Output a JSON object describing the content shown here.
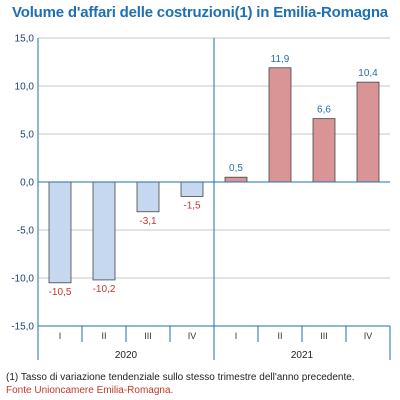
{
  "chart_data": {
    "type": "bar",
    "title": "Volume d'affari delle costruzioni(1) in Emilia-Romagna",
    "groups": [
      {
        "label": "2020",
        "categories": [
          "I",
          "II",
          "III",
          "IV"
        ]
      },
      {
        "label": "2021",
        "categories": [
          "I",
          "II",
          "III",
          "IV"
        ]
      }
    ],
    "categories": [
      "I",
      "II",
      "III",
      "IV",
      "I",
      "II",
      "III",
      "IV"
    ],
    "values": [
      -10.5,
      -10.2,
      -3.1,
      -1.5,
      0.5,
      11.9,
      6.6,
      10.4
    ],
    "data_labels": [
      "-10,5",
      "-10,2",
      "-3,1",
      "-1,5",
      "0,5",
      "11,9",
      "6,6",
      "10,4"
    ],
    "yticks": [
      15.0,
      10.0,
      5.0,
      0.0,
      -5.0,
      -10.0,
      -15.0
    ],
    "ytick_labels": [
      "15,0",
      "10,0",
      "5,0",
      "0,0",
      "-5,0",
      "-10,0",
      "-15,0"
    ],
    "ylim": [
      -15,
      15
    ],
    "grid": true,
    "legend": "none",
    "colors": {
      "bars_2020": "#c5d8ef",
      "bars_2021": "#d99595",
      "bar_outline": "#444444",
      "axis": "#1f6fb4",
      "grid": "#c8c8c8",
      "label_negative": "#c0392b",
      "label_positive": "#1f6fb4",
      "title": "#1f6fb4"
    }
  },
  "footnote": "(1) Tasso di variazione tendenziale sullo stesso trimestre dell'anno precedente.",
  "source": "Fonte Unioncamere Emilia-Romagna."
}
